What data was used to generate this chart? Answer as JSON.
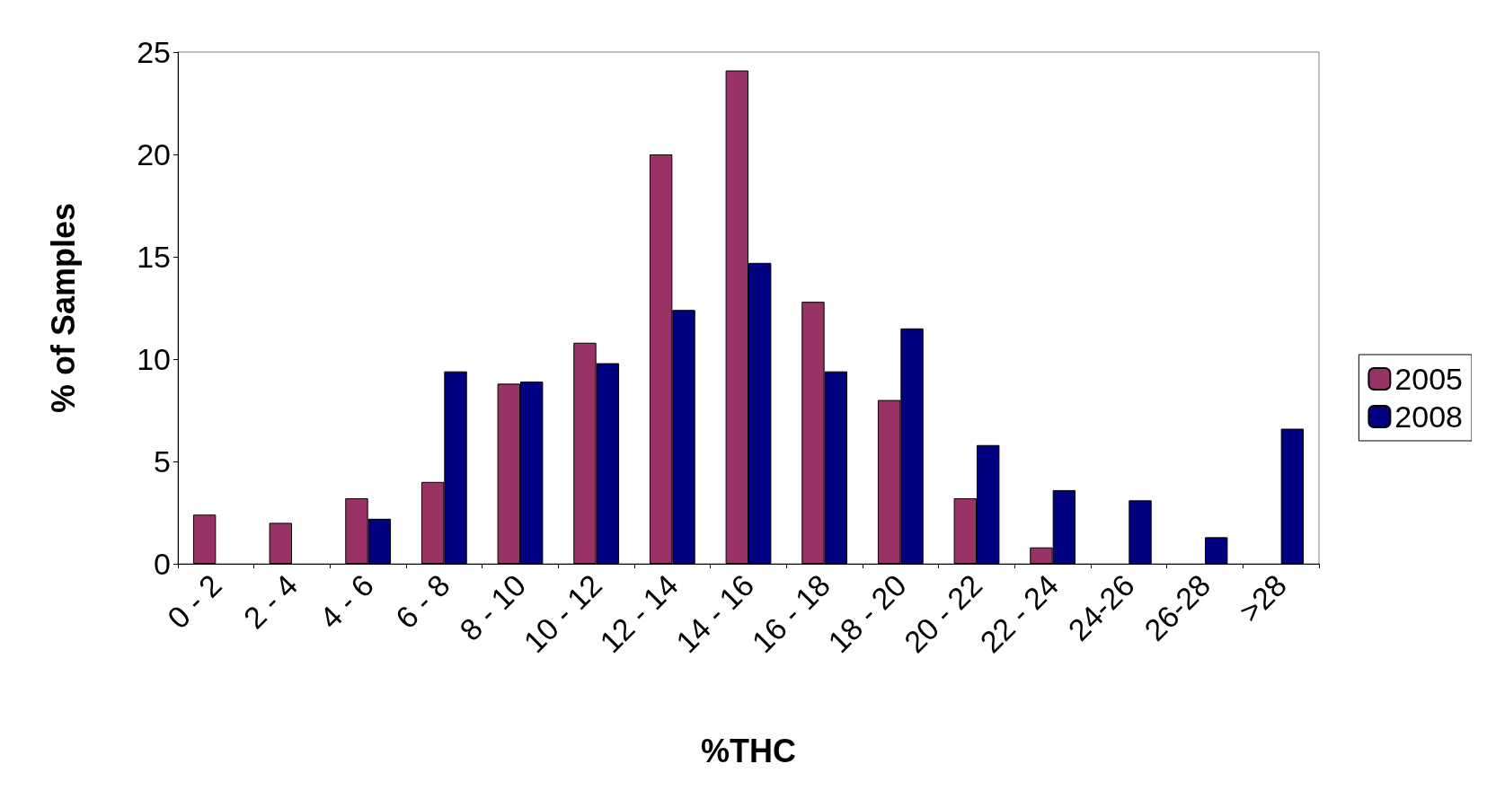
{
  "chart_data": {
    "type": "bar",
    "xlabel": "%THC",
    "ylabel": "% of Samples",
    "categories": [
      "0 - 2",
      "2 - 4",
      "4 - 6",
      "6 - 8",
      "8 - 10",
      "10 - 12",
      "12 - 14",
      "14 - 16",
      "16 - 18",
      "18 - 20",
      "20 - 22",
      "22 - 24",
      "24-26",
      "26-28",
      ">28"
    ],
    "series": [
      {
        "name": "2005",
        "color": "#993366",
        "values": [
          2.4,
          2.0,
          3.2,
          4.0,
          8.8,
          10.8,
          20,
          24.1,
          12.8,
          8.0,
          3.2,
          0.8,
          null,
          null,
          null
        ]
      },
      {
        "name": "2008",
        "color": "#000080",
        "values": [
          null,
          null,
          2.2,
          9.4,
          8.9,
          9.8,
          12.4,
          14.7,
          9.4,
          11.5,
          5.8,
          3.6,
          3.1,
          1.3,
          6.6
        ]
      }
    ],
    "ylim": [
      0,
      25
    ],
    "yticks": [
      0,
      5,
      10,
      15,
      20,
      25
    ],
    "grid": false,
    "legend": "right"
  }
}
